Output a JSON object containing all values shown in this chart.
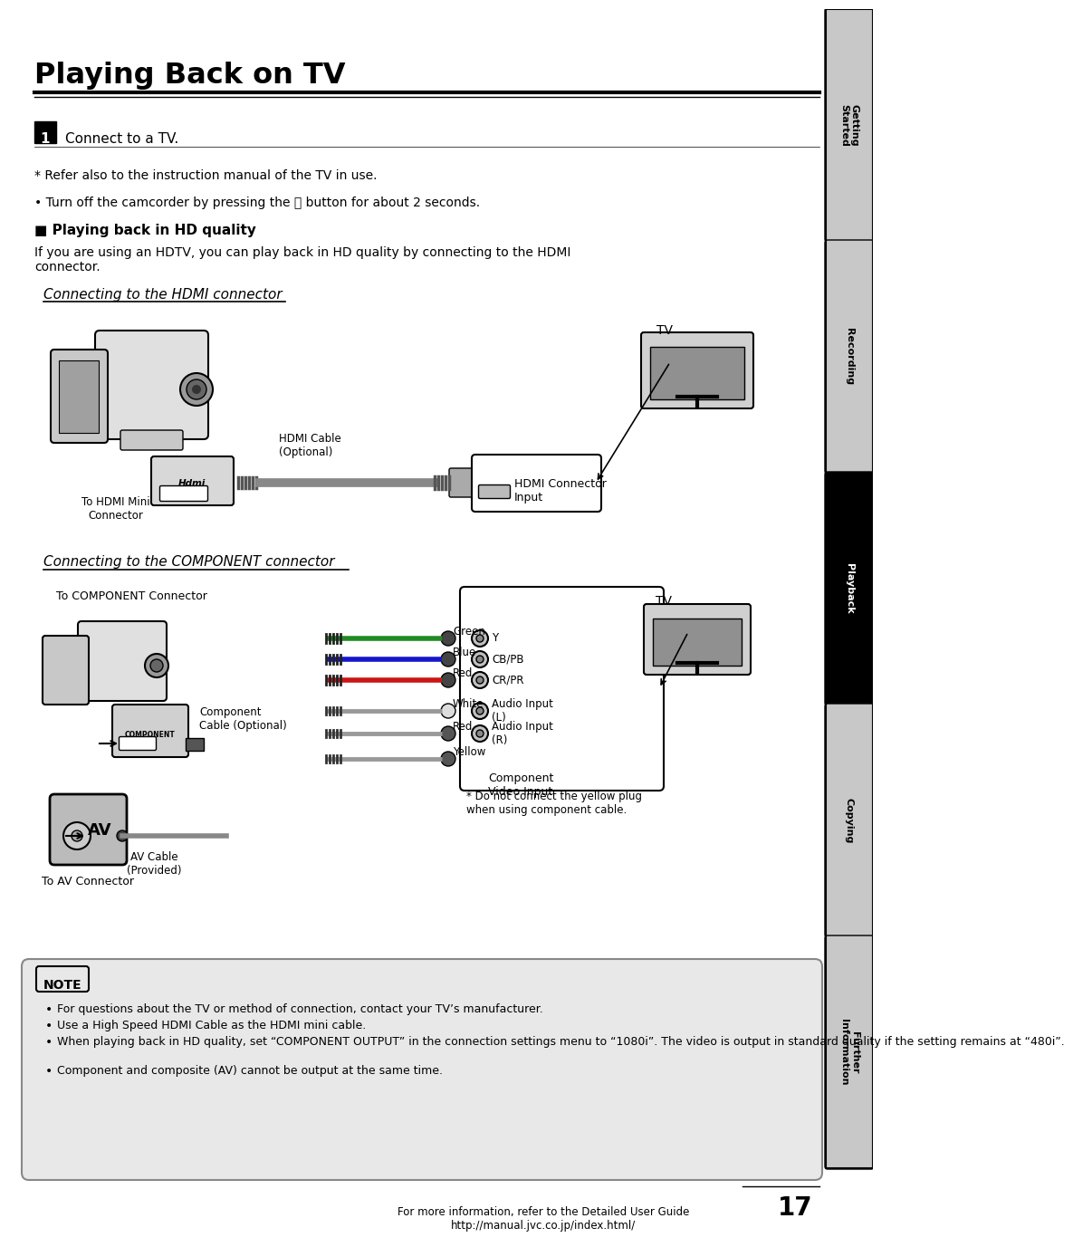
{
  "title": "Playing Back on TV",
  "page_bg": "#ffffff",
  "step1_text": "Connect to a TV.",
  "note_refer": "* Refer also to the instruction manual of the TV in use.",
  "bullet1": "• Turn off the camcorder by pressing the ⏻ button for about 2 seconds.",
  "hd_quality_title": "■ Playing back in HD quality",
  "hd_quality_text": "If you are using an HDTV, you can play back in HD quality by connecting to the HDMI\nconnector.",
  "hdmi_section_title": "Connecting to the HDMI connector",
  "component_section_title": "Connecting to the COMPONENT connector",
  "hdmi_labels": {
    "to_hdmi": "To HDMI Mini\nConnector",
    "hdmi_cable": "HDMI Cable\n(Optional)",
    "tv_label": "TV",
    "hdmi_input": "HDMI Connector\nInput"
  },
  "component_labels": {
    "to_component": "To COMPONENT Connector",
    "component_cable": "Component\nCable (Optional)",
    "green": "Green",
    "blue": "Blue",
    "red1": "Red",
    "white": "White",
    "red2": "Red",
    "yellow": "Yellow",
    "comp_video_input": "Component\nVideo Input",
    "y": "Y",
    "cb_pb": "CB/PB",
    "cr_pr": "CR/PR",
    "audio_l": "Audio Input\n(L)",
    "audio_r": "Audio Input\n(R)",
    "tv_label": "TV",
    "av_label": "AV",
    "av_cable": "AV Cable\n(Provided)",
    "to_av": "To AV Connector",
    "no_yellow": "* Do not connect the yellow plug\nwhen using component cable."
  },
  "note_title": "NOTE",
  "note_bullets": [
    "For questions about the TV or method of connection, contact your TV’s manufacturer.",
    "Use a High Speed HDMI Cable as the HDMI mini cable.",
    "When playing back in HD quality, set “COMPONENT OUTPUT” in the connection settings menu to “1080i”. The video is output in standard quality if the setting remains at “480i”.",
    "Component and composite (AV) cannot be output at the same time."
  ],
  "footer_text": "For more information, refer to the Detailed User Guide\nhttp://manual.jvc.co.jp/index.html/",
  "page_number": "17",
  "sidebar_sections": [
    {
      "label": "Getting\nStarted",
      "active": false
    },
    {
      "label": "Recording",
      "active": false
    },
    {
      "label": "Playback",
      "active": true
    },
    {
      "label": "Copying",
      "active": false
    },
    {
      "label": "Further\nInformation",
      "active": false
    }
  ]
}
